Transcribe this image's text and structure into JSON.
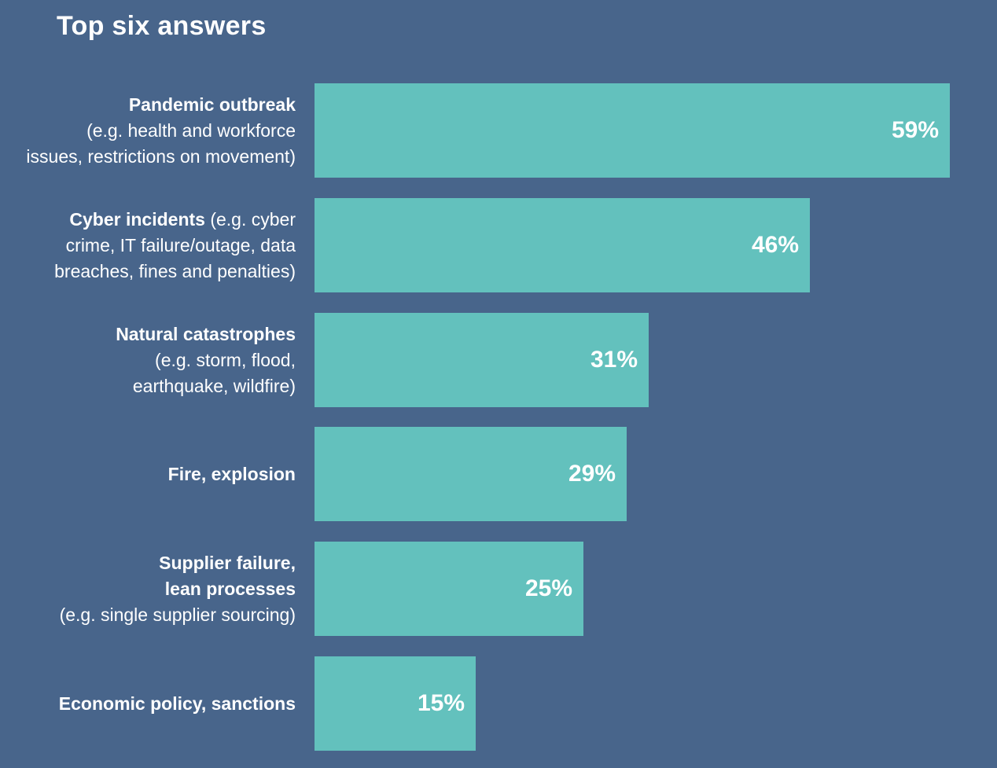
{
  "chart_data": {
    "type": "bar",
    "orientation": "horizontal",
    "title": "Top six answers",
    "categories": [
      "Pandemic outbreak (e.g. health and workforce issues, restrictions on movement)",
      "Cyber incidents (e.g. cyber crime, IT failure/outage, data breaches, fines and penalties)",
      "Natural catastrophes (e.g. storm, flood, earthquake, wildfire)",
      "Fire, explosion",
      "Supplier failure, lean processes (e.g. single supplier sourcing)",
      "Economic policy, sanctions"
    ],
    "values": [
      59,
      46,
      31,
      29,
      25,
      15
    ],
    "value_labels": [
      "59%",
      "46%",
      "31%",
      "29%",
      "25%",
      "15%"
    ],
    "xlim": [
      0,
      59
    ],
    "colors": {
      "background": "#48658b",
      "bar": "#63c1bd",
      "text": "#ffffff"
    },
    "label_lines": [
      [
        {
          "text": "Pandemic outbreak",
          "bold": true
        },
        {
          "text": "(e.g. health and workforce",
          "bold": false
        },
        {
          "text": "issues, restrictions on movement)",
          "bold": false
        }
      ],
      [
        {
          "text": "Cyber incidents",
          "bold": true,
          "inline_suffix": " (e.g. cyber"
        },
        {
          "text": "crime, IT failure/outage, data",
          "bold": false
        },
        {
          "text": "breaches, fines and penalties)",
          "bold": false
        }
      ],
      [
        {
          "text": "Natural catastrophes",
          "bold": true
        },
        {
          "text": "(e.g. storm, flood,",
          "bold": false
        },
        {
          "text": "earthquake, wildfire)",
          "bold": false
        }
      ],
      [
        {
          "text": "Fire, explosion",
          "bold": true
        }
      ],
      [
        {
          "text": "Supplier failure,",
          "bold": true
        },
        {
          "text": "lean processes",
          "bold": true
        },
        {
          "text": "(e.g. single supplier sourcing)",
          "bold": false
        }
      ],
      [
        {
          "text": "Economic policy, sanctions",
          "bold": true
        }
      ]
    ]
  }
}
